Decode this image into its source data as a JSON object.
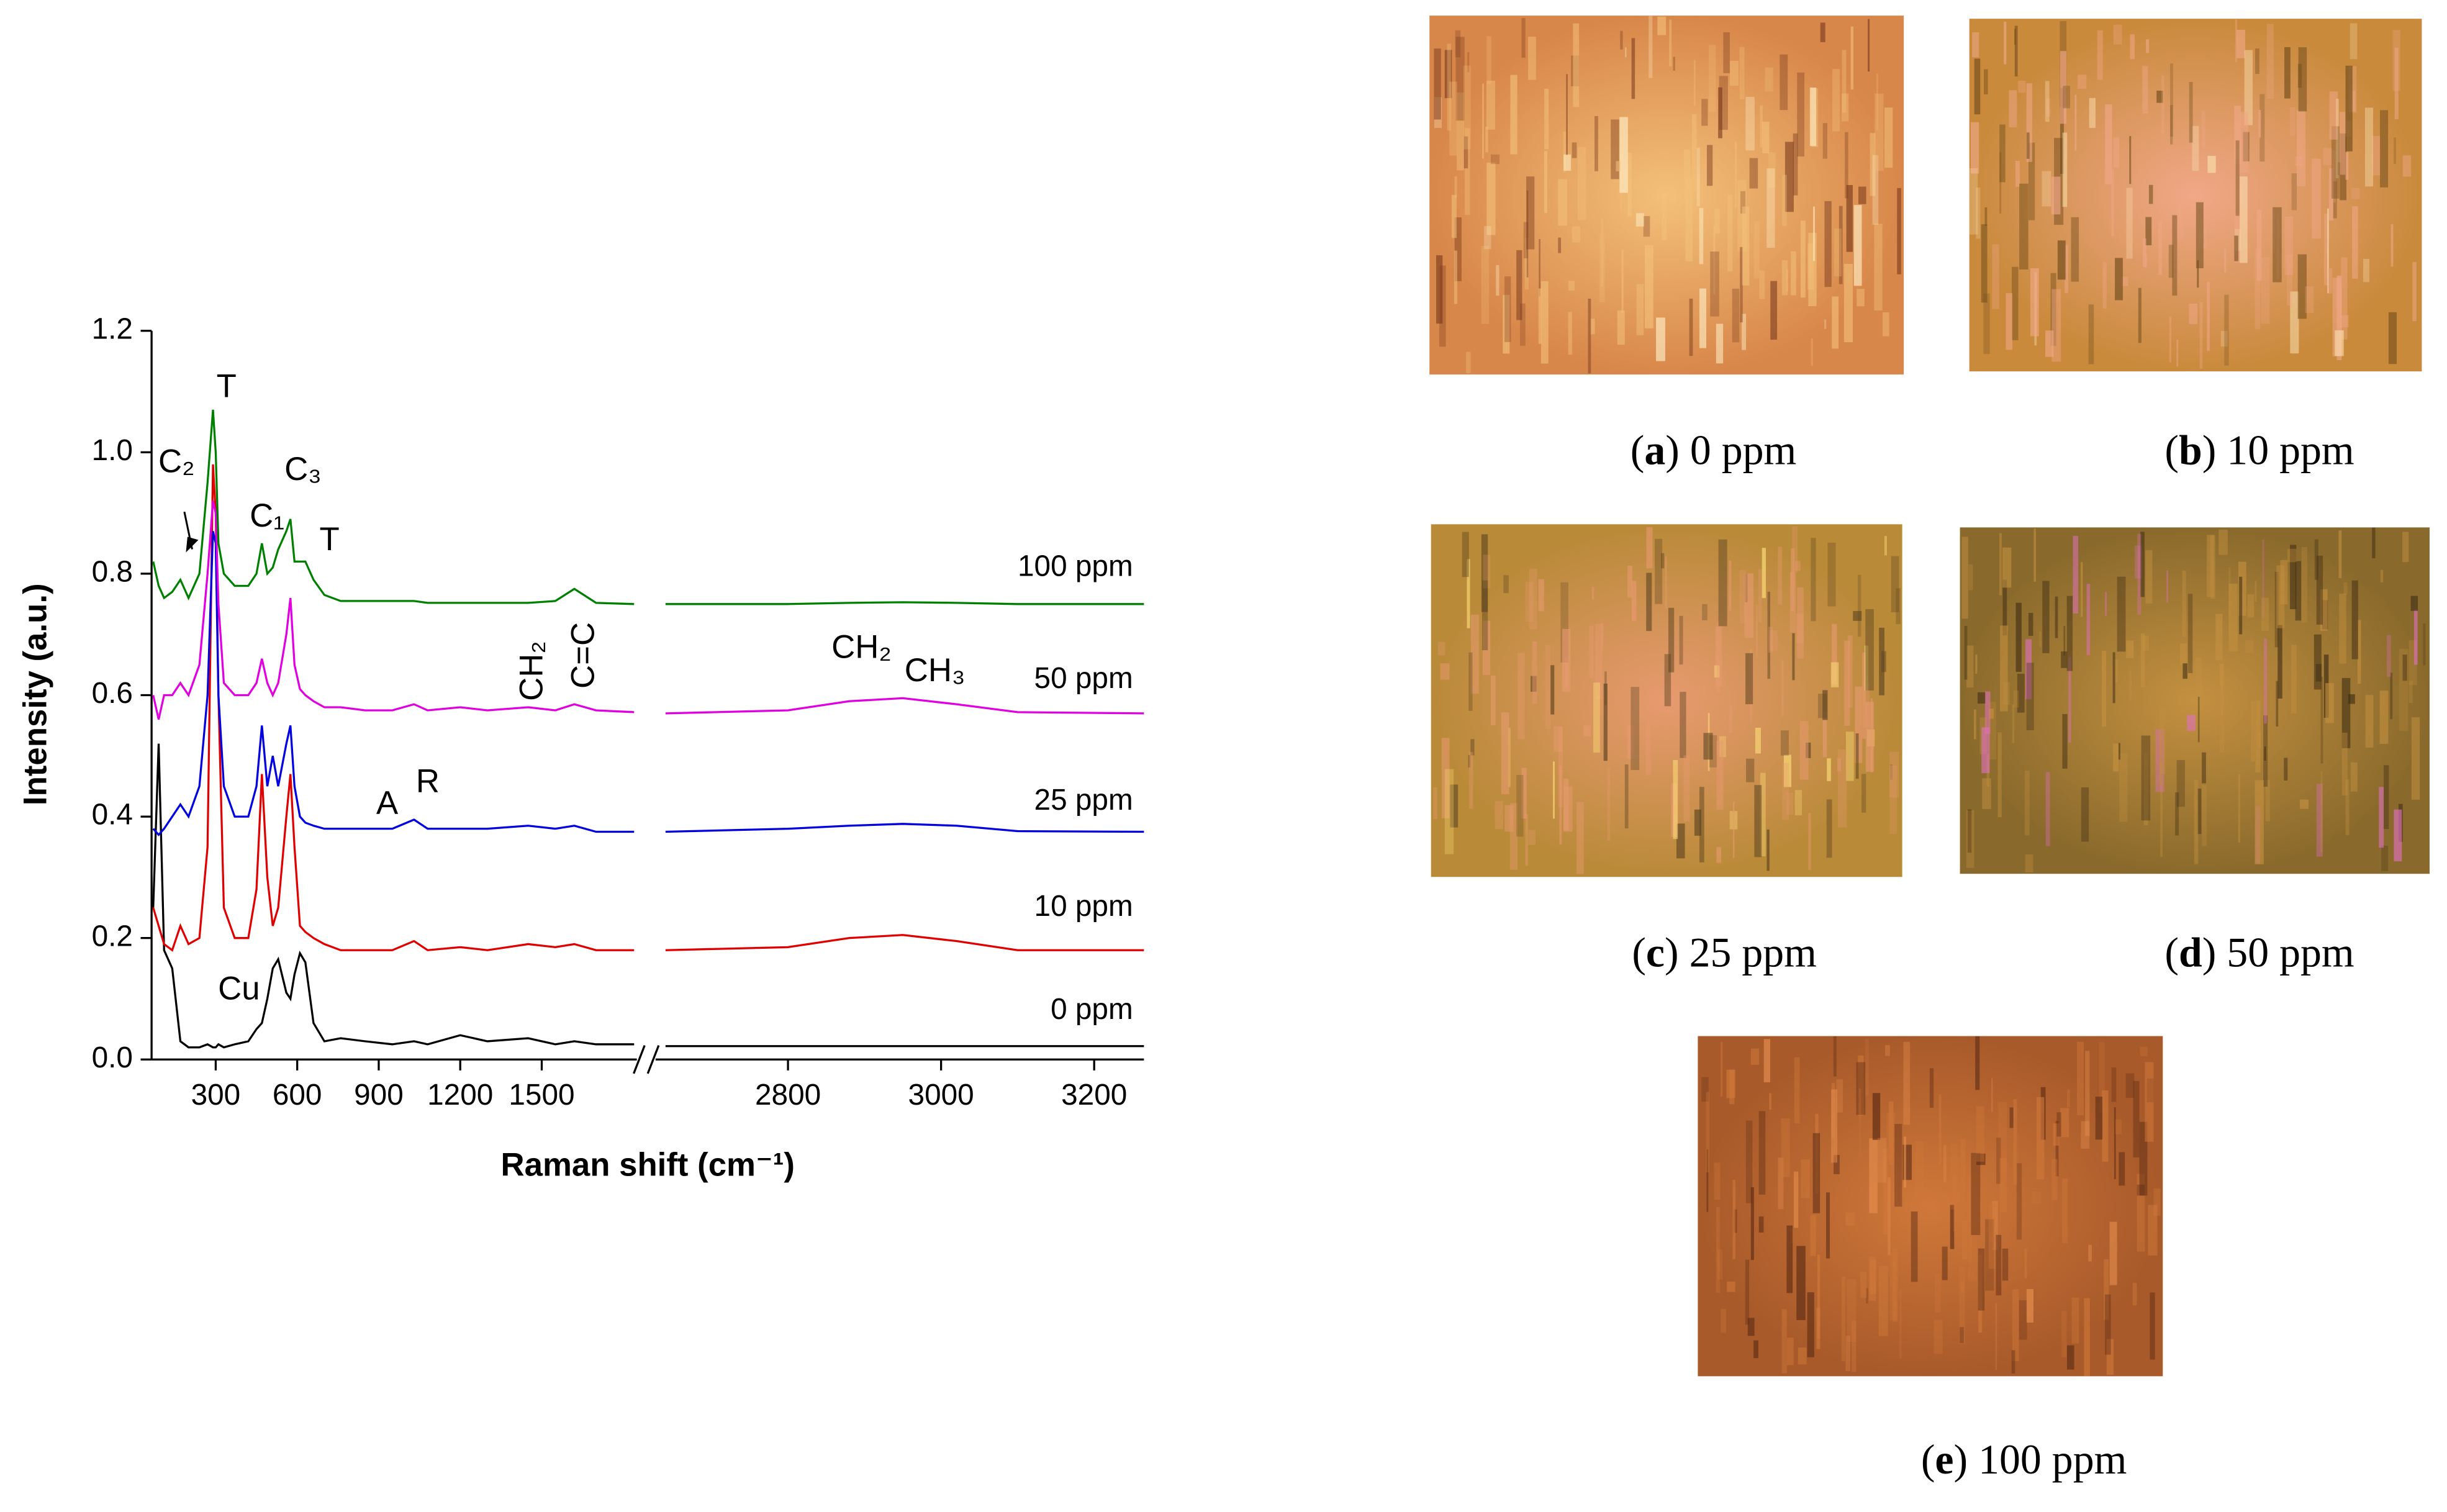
{
  "chart_data": {
    "type": "line",
    "xlabel": "Raman shift (cm⁻¹)",
    "ylabel": "Intensity (a.u.)",
    "x": [
      70,
      90,
      110,
      140,
      170,
      200,
      240,
      270,
      290,
      300,
      310,
      330,
      370,
      420,
      450,
      470,
      490,
      510,
      530,
      560,
      575,
      590,
      610,
      630,
      660,
      700,
      760,
      850,
      950,
      1030,
      1080,
      1200,
      1300,
      1450,
      1550,
      1620,
      1700,
      1840,
      2640,
      2800,
      2880,
      2950,
      3020,
      3100,
      3265
    ],
    "series": [
      {
        "name": "0 ppm",
        "color": "#000000",
        "values": [
          0.25,
          0.52,
          0.18,
          0.15,
          0.03,
          0.02,
          0.02,
          0.025,
          0.02,
          0.02,
          0.025,
          0.02,
          0.025,
          0.03,
          0.05,
          0.06,
          0.1,
          0.15,
          0.165,
          0.11,
          0.1,
          0.14,
          0.175,
          0.16,
          0.06,
          0.03,
          0.035,
          0.03,
          0.025,
          0.03,
          0.025,
          0.04,
          0.03,
          0.035,
          0.025,
          0.03,
          0.025,
          0.025,
          0.022,
          0.022,
          0.022,
          0.022,
          0.022,
          0.022,
          0.022
        ]
      },
      {
        "name": "10 ppm",
        "color": "#e00000",
        "values": [
          0.25,
          0.22,
          0.19,
          0.18,
          0.22,
          0.19,
          0.2,
          0.35,
          0.98,
          0.9,
          0.6,
          0.25,
          0.2,
          0.2,
          0.28,
          0.47,
          0.3,
          0.22,
          0.25,
          0.4,
          0.47,
          0.35,
          0.22,
          0.21,
          0.2,
          0.19,
          0.18,
          0.18,
          0.18,
          0.195,
          0.18,
          0.185,
          0.18,
          0.19,
          0.185,
          0.19,
          0.18,
          0.18,
          0.18,
          0.185,
          0.2,
          0.205,
          0.195,
          0.18,
          0.18
        ]
      },
      {
        "name": "25 ppm",
        "color": "#0000e0",
        "values": [
          0.38,
          0.37,
          0.38,
          0.4,
          0.42,
          0.4,
          0.45,
          0.6,
          0.87,
          0.85,
          0.6,
          0.45,
          0.4,
          0.4,
          0.45,
          0.55,
          0.45,
          0.5,
          0.45,
          0.52,
          0.55,
          0.45,
          0.4,
          0.39,
          0.385,
          0.38,
          0.38,
          0.38,
          0.38,
          0.395,
          0.38,
          0.38,
          0.38,
          0.385,
          0.38,
          0.385,
          0.375,
          0.375,
          0.375,
          0.38,
          0.385,
          0.388,
          0.385,
          0.376,
          0.375
        ]
      },
      {
        "name": "50 ppm",
        "color": "#e000e0",
        "values": [
          0.6,
          0.56,
          0.6,
          0.6,
          0.62,
          0.6,
          0.65,
          0.8,
          0.92,
          0.9,
          0.75,
          0.62,
          0.6,
          0.6,
          0.62,
          0.66,
          0.62,
          0.6,
          0.62,
          0.7,
          0.76,
          0.65,
          0.61,
          0.6,
          0.59,
          0.58,
          0.58,
          0.575,
          0.575,
          0.585,
          0.575,
          0.58,
          0.575,
          0.58,
          0.575,
          0.585,
          0.575,
          0.572,
          0.57,
          0.575,
          0.59,
          0.595,
          0.585,
          0.572,
          0.57
        ]
      },
      {
        "name": "100 ppm",
        "color": "#008000",
        "values": [
          0.82,
          0.78,
          0.76,
          0.77,
          0.79,
          0.76,
          0.8,
          0.95,
          1.07,
          1.0,
          0.85,
          0.8,
          0.78,
          0.78,
          0.8,
          0.85,
          0.8,
          0.81,
          0.84,
          0.87,
          0.89,
          0.82,
          0.82,
          0.82,
          0.79,
          0.765,
          0.755,
          0.755,
          0.755,
          0.755,
          0.752,
          0.752,
          0.752,
          0.752,
          0.755,
          0.775,
          0.752,
          0.75,
          0.75,
          0.75,
          0.752,
          0.753,
          0.752,
          0.75,
          0.75
        ]
      }
    ],
    "xlim": [
      64,
      3265
    ],
    "xbreak": [
      1850,
      2627
    ],
    "xticks": [
      300,
      600,
      900,
      1200,
      1500,
      2800,
      3000,
      3200
    ],
    "ylim": [
      0,
      1.2
    ],
    "yticks": [
      {
        "value": 0,
        "label": "0.0"
      },
      0.2,
      0.4,
      0.6,
      0.8,
      {
        "value": 1,
        "label": "1.0"
      },
      1.2
    ],
    "annotations": [
      "T",
      "C₂",
      "C₃",
      "C₁",
      "T",
      "A",
      "R",
      "Cu",
      "CH₂",
      "C=C",
      "CH₂",
      "CH₃"
    ]
  },
  "panels": [
    {
      "caption": "(a) 0 ppm"
    },
    {
      "caption": "(b) 10 ppm"
    },
    {
      "caption": "(c) 25 ppm"
    },
    {
      "caption": "(d) 50 ppm"
    },
    {
      "caption": "(e) 100 ppm"
    }
  ]
}
